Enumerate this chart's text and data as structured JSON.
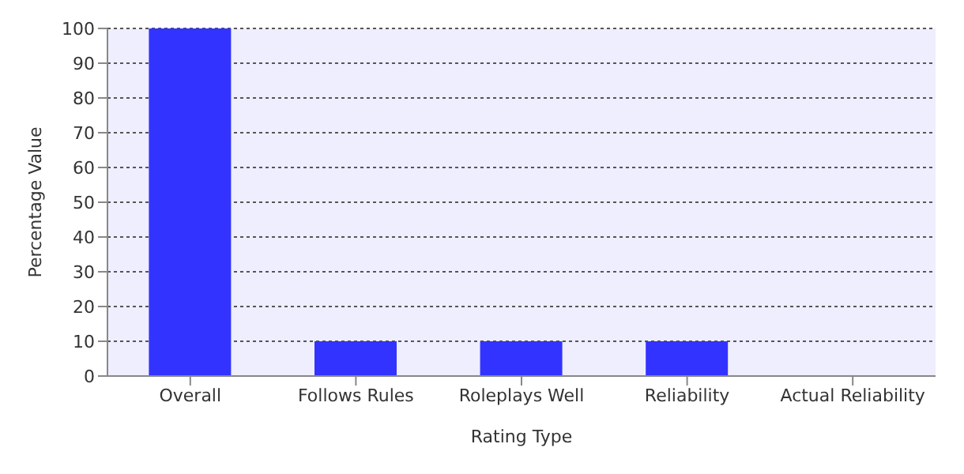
{
  "chart_data": {
    "type": "bar",
    "xlabel": "Rating Type",
    "ylabel": "Percentage Value",
    "categories": [
      "Overall",
      "Follows Rules",
      "Roleplays Well",
      "Reliability",
      "Actual Reliability"
    ],
    "values": [
      100,
      10,
      10,
      10,
      0
    ],
    "color": "#3333ff",
    "ylim": [
      0,
      100
    ],
    "yticks": [
      0,
      10,
      20,
      30,
      40,
      50,
      60,
      70,
      80,
      90,
      100
    ],
    "grid": "y"
  }
}
